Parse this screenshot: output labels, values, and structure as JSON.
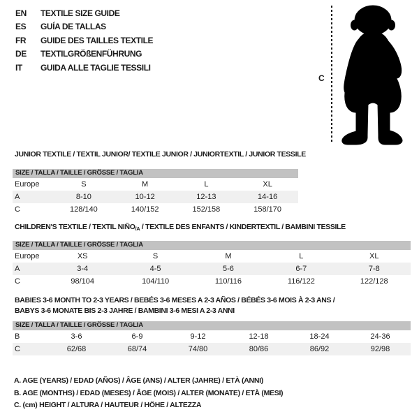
{
  "colors": {
    "bar": "#c2c2c2",
    "shaded": "#f0f0f0",
    "text": "#1b1b1b",
    "line": "#1b1b1b",
    "silhouette": "#000000"
  },
  "header": {
    "languages": [
      {
        "code": "EN",
        "label": "TEXTILE SIZE GUIDE"
      },
      {
        "code": "ES",
        "label": "GUÍA DE TALLAS"
      },
      {
        "code": "FR",
        "label": "GUIDE DES TAILLES TEXTILE"
      },
      {
        "code": "DE",
        "label": "TEXTILGRÖßENFÜHRUNG"
      },
      {
        "code": "IT",
        "label": "GUIDA ALLE TAGLIE TESSILI"
      }
    ]
  },
  "figure": {
    "measure_label": "C",
    "silhouette_name": "toddler-silhouette"
  },
  "sections": [
    {
      "title": "JUNIOR TEXTILE / TEXTIL JUNIOR/ TEXTILE JUNIOR / JUNIORTEXTIL / JUNIOR TESSILE",
      "size_header": "SIZE / TALLA / TAILLE / GRÖSSE / TAGLIA",
      "rows": [
        {
          "label": "Europe",
          "values": [
            "S",
            "M",
            "L",
            "XL"
          ],
          "shaded": false
        },
        {
          "label": "A",
          "values": [
            "8-10",
            "10-12",
            "12-13",
            "14-16"
          ],
          "shaded": true
        },
        {
          "label": "C",
          "values": [
            "128/140",
            "140/152",
            "152/158",
            "158/170"
          ],
          "shaded": false
        }
      ]
    },
    {
      "title_parts": [
        "CHILDREN'S TEXTILE / TEXTIL NIÑO",
        "/A",
        " / TEXTILE DES ENFANTS / KINDERTEXTIL / BAMBINI TESSILE"
      ],
      "size_header": "SIZE / TALLA / TAILLE / GRÖSSE / TAGLIA",
      "rows": [
        {
          "label": "Europe",
          "values": [
            "XS",
            "S",
            "M",
            "L",
            "XL"
          ],
          "shaded": false
        },
        {
          "label": "A",
          "values": [
            "3-4",
            "4-5",
            "5-6",
            "6-7",
            "7-8"
          ],
          "shaded": true
        },
        {
          "label": "C",
          "values": [
            "98/104",
            "104/110",
            "110/116",
            "116/122",
            "122/128"
          ],
          "shaded": false
        }
      ]
    },
    {
      "title_lines": [
        "BABIES 3-6 MONTH TO 2-3 YEARS / BEBÉS 3-6 MESES A 2-3 AÑOS / BÉBÉS 3-6 MOIS À 2-3 ANS /",
        "BABYS 3-6 MONATE BIS 2-3 JAHRE / BAMBINI 3-6 MESI A 2-3 ANNI"
      ],
      "size_header": "SIZE / TALLA / TAILLE / GRÖSSE / TAGLIA",
      "rows": [
        {
          "label": "B",
          "values": [
            "3-6",
            "6-9",
            "9-12",
            "12-18",
            "18-24",
            "24-36"
          ],
          "shaded": false
        },
        {
          "label": "C",
          "values": [
            "62/68",
            "68/74",
            "74/80",
            "80/86",
            "86/92",
            "92/98"
          ],
          "shaded": true
        }
      ]
    }
  ],
  "footnotes": [
    "A. AGE (YEARS) / EDAD (AÑOS) / ÂGE (ANS) / ALTER (JAHRE) / ETÀ (ANNI)",
    "B. AGE (MONTHS) / EDAD (MESES) / ÂGE (MOIS) / ALTER (MONATE) / ETÀ (MESI)",
    "C. (cm) HEIGHT / ALTURA / HAUTEUR / HÖHE / ALTEZZA"
  ]
}
